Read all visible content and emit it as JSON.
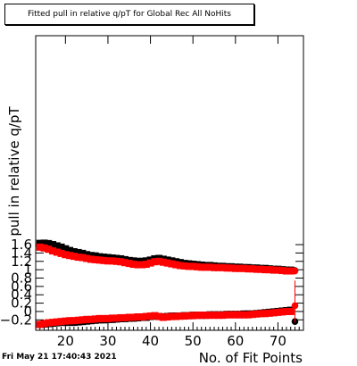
{
  "chart_data": {
    "type": "scatter",
    "title": "Fitted pull in relative q/pT for Global Rec All NoHits",
    "xlabel": "No. of Fit Points",
    "ylabel": "pull in relative q/pT",
    "xlim": [
      13,
      76
    ],
    "ylim": [
      -0.45,
      6.6
    ],
    "x_ticks": [
      20,
      30,
      40,
      50,
      60,
      70
    ],
    "y_ticks": [
      -0.2,
      0,
      0.2,
      0.4,
      0.6,
      0.8,
      1,
      1.2,
      1.4,
      1.6
    ],
    "y_tick_labels": [
      "−0.2",
      "0",
      "0.2",
      "0.4",
      "0.6",
      "0.8",
      "1",
      "1.2",
      "1.4",
      "1.6"
    ],
    "x": [
      14,
      15,
      16,
      17,
      18,
      19,
      20,
      21,
      22,
      23,
      24,
      25,
      26,
      27,
      28,
      29,
      30,
      31,
      32,
      33,
      34,
      35,
      36,
      37,
      38,
      39,
      40,
      41,
      42,
      43,
      44,
      45,
      46,
      47,
      48,
      49,
      50,
      51,
      52,
      53,
      54,
      55,
      56,
      57,
      58,
      59,
      60,
      61,
      62,
      63,
      64,
      65,
      66,
      67,
      68,
      69,
      70,
      71,
      72,
      73,
      74
    ],
    "series": [
      {
        "color": "#000000",
        "values": [
          1.63,
          1.635,
          1.625,
          1.6,
          1.57,
          1.54,
          1.5,
          1.46,
          1.43,
          1.41,
          1.39,
          1.36,
          1.34,
          1.33,
          1.31,
          1.3,
          1.29,
          1.28,
          1.27,
          1.26,
          1.24,
          1.22,
          1.21,
          1.2,
          1.2,
          1.21,
          1.23,
          1.26,
          1.27,
          1.25,
          1.23,
          1.21,
          1.19,
          1.17,
          1.15,
          1.14,
          1.13,
          1.12,
          1.11,
          1.1,
          1.1,
          1.09,
          1.08,
          1.08,
          1.07,
          1.07,
          1.06,
          1.06,
          1.05,
          1.05,
          1.04,
          1.04,
          1.03,
          1.03,
          1.02,
          1.01,
          1.01,
          1.0,
          0.99,
          0.99,
          0.98
        ]
      },
      {
        "color": "#ff0000",
        "values": [
          1.54,
          1.52,
          1.49,
          1.45,
          1.42,
          1.39,
          1.36,
          1.34,
          1.32,
          1.3,
          1.29,
          1.27,
          1.25,
          1.24,
          1.23,
          1.22,
          1.21,
          1.21,
          1.2,
          1.19,
          1.17,
          1.15,
          1.13,
          1.12,
          1.12,
          1.13,
          1.16,
          1.19,
          1.2,
          1.18,
          1.16,
          1.14,
          1.12,
          1.1,
          1.09,
          1.08,
          1.08,
          1.07,
          1.06,
          1.06,
          1.06,
          1.05,
          1.05,
          1.05,
          1.04,
          1.04,
          1.03,
          1.03,
          1.03,
          1.02,
          1.02,
          1.01,
          1.01,
          1.0,
          1.0,
          0.99,
          0.99,
          0.98,
          0.97,
          0.97,
          0.97
        ]
      },
      {
        "color": "#000000",
        "values": [
          -0.31,
          -0.3,
          -0.29,
          -0.28,
          -0.27,
          -0.26,
          -0.26,
          -0.26,
          -0.26,
          -0.25,
          -0.24,
          -0.23,
          -0.22,
          -0.21,
          -0.2,
          -0.2,
          -0.19,
          -0.19,
          -0.18,
          -0.17,
          -0.17,
          -0.16,
          -0.16,
          -0.15,
          -0.14,
          -0.14,
          -0.12,
          -0.11,
          -0.12,
          -0.13,
          -0.12,
          -0.11,
          -0.11,
          -0.11,
          -0.1,
          -0.1,
          -0.09,
          -0.09,
          -0.09,
          -0.09,
          -0.08,
          -0.08,
          -0.08,
          -0.08,
          -0.07,
          -0.07,
          -0.07,
          -0.07,
          -0.06,
          -0.06,
          -0.06,
          -0.05,
          -0.04,
          -0.03,
          -0.02,
          -0.01,
          0.0,
          0.01,
          0.02,
          0.03,
          -0.24
        ]
      },
      {
        "color": "#ff0000",
        "values": [
          -0.31,
          -0.29,
          -0.27,
          -0.26,
          -0.25,
          -0.24,
          -0.23,
          -0.22,
          -0.22,
          -0.21,
          -0.2,
          -0.19,
          -0.19,
          -0.18,
          -0.17,
          -0.17,
          -0.17,
          -0.16,
          -0.16,
          -0.15,
          -0.15,
          -0.14,
          -0.14,
          -0.13,
          -0.13,
          -0.12,
          -0.11,
          -0.1,
          -0.12,
          -0.14,
          -0.13,
          -0.12,
          -0.12,
          -0.11,
          -0.11,
          -0.1,
          -0.1,
          -0.09,
          -0.09,
          -0.09,
          -0.09,
          -0.09,
          -0.09,
          -0.09,
          -0.08,
          -0.08,
          -0.08,
          -0.08,
          -0.08,
          -0.08,
          -0.07,
          -0.06,
          -0.05,
          -0.05,
          -0.04,
          -0.03,
          -0.02,
          -0.01,
          0.0,
          0.0,
          0.14
        ],
        "error_last": [
          -0.26,
          0.74
        ]
      }
    ]
  },
  "footer": {
    "timestamp": "Fri May 21 17:40:43 2021"
  }
}
